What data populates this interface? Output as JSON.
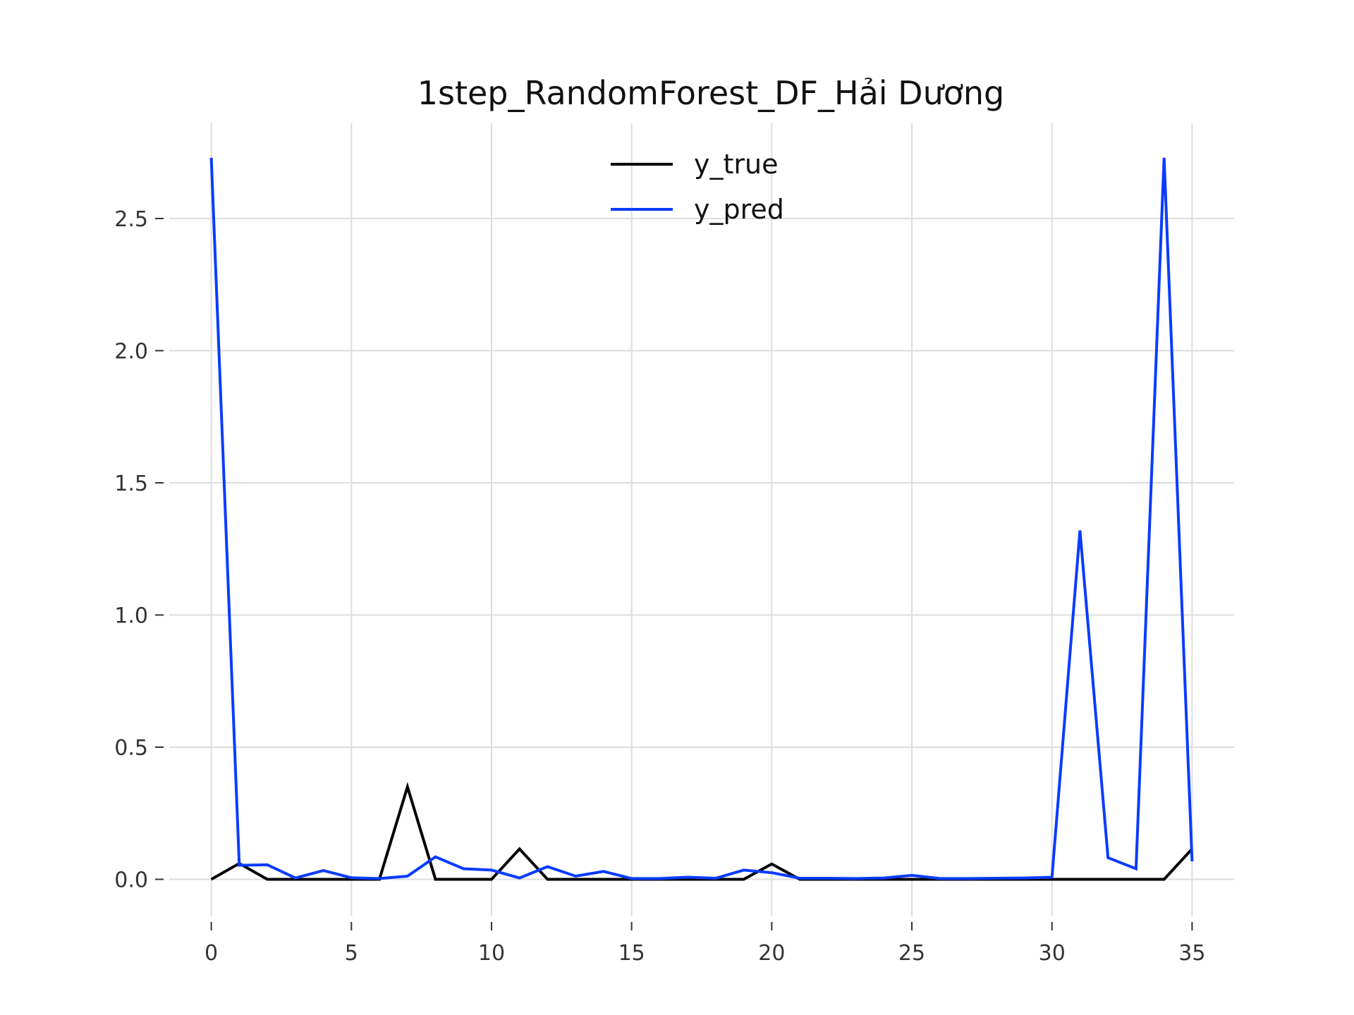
{
  "chart_data": {
    "type": "line",
    "title": "1step_RandomForest_DF_Hải Dương",
    "xlabel": "",
    "ylabel": "",
    "xlim": [
      -1.5,
      36.5
    ],
    "ylim": [
      -0.14,
      2.86
    ],
    "xticks": [
      0,
      5,
      10,
      15,
      20,
      25,
      30,
      35
    ],
    "xtick_labels": [
      "0",
      "5",
      "10",
      "15",
      "20",
      "25",
      "30",
      "35"
    ],
    "yticks": [
      0.0,
      0.5,
      1.0,
      1.5,
      2.0,
      2.5
    ],
    "ytick_labels": [
      "0.0",
      "0.5",
      "1.0",
      "1.5",
      "2.0",
      "2.5"
    ],
    "grid": true,
    "legend_position": "top-center",
    "x": [
      0,
      1,
      2,
      3,
      4,
      5,
      6,
      7,
      8,
      9,
      10,
      11,
      12,
      13,
      14,
      15,
      16,
      17,
      18,
      19,
      20,
      21,
      22,
      23,
      24,
      25,
      26,
      27,
      28,
      29,
      30,
      31,
      32,
      33,
      34,
      35
    ],
    "series": [
      {
        "name": "y_true",
        "color": "#000000",
        "values": [
          0.0,
          0.06,
          0.0,
          0.0,
          0.0,
          0.0,
          0.0,
          0.35,
          0.0,
          0.0,
          0.0,
          0.115,
          0.0,
          0.0,
          0.0,
          0.0,
          0.0,
          0.0,
          0.0,
          0.0,
          0.058,
          0.0,
          0.0,
          0.0,
          0.0,
          0.0,
          0.0,
          0.0,
          0.0,
          0.0,
          0.0,
          0.0,
          0.0,
          0.0,
          0.0,
          0.115
        ]
      },
      {
        "name": "y_pred",
        "color": "#0a3cff",
        "values": [
          2.73,
          0.053,
          0.055,
          0.005,
          0.033,
          0.006,
          0.003,
          0.012,
          0.085,
          0.04,
          0.035,
          0.005,
          0.048,
          0.012,
          0.03,
          0.003,
          0.003,
          0.008,
          0.004,
          0.035,
          0.025,
          0.004,
          0.004,
          0.003,
          0.005,
          0.015,
          0.003,
          0.003,
          0.004,
          0.005,
          0.008,
          1.32,
          0.082,
          0.04,
          2.73,
          0.068
        ]
      }
    ]
  }
}
